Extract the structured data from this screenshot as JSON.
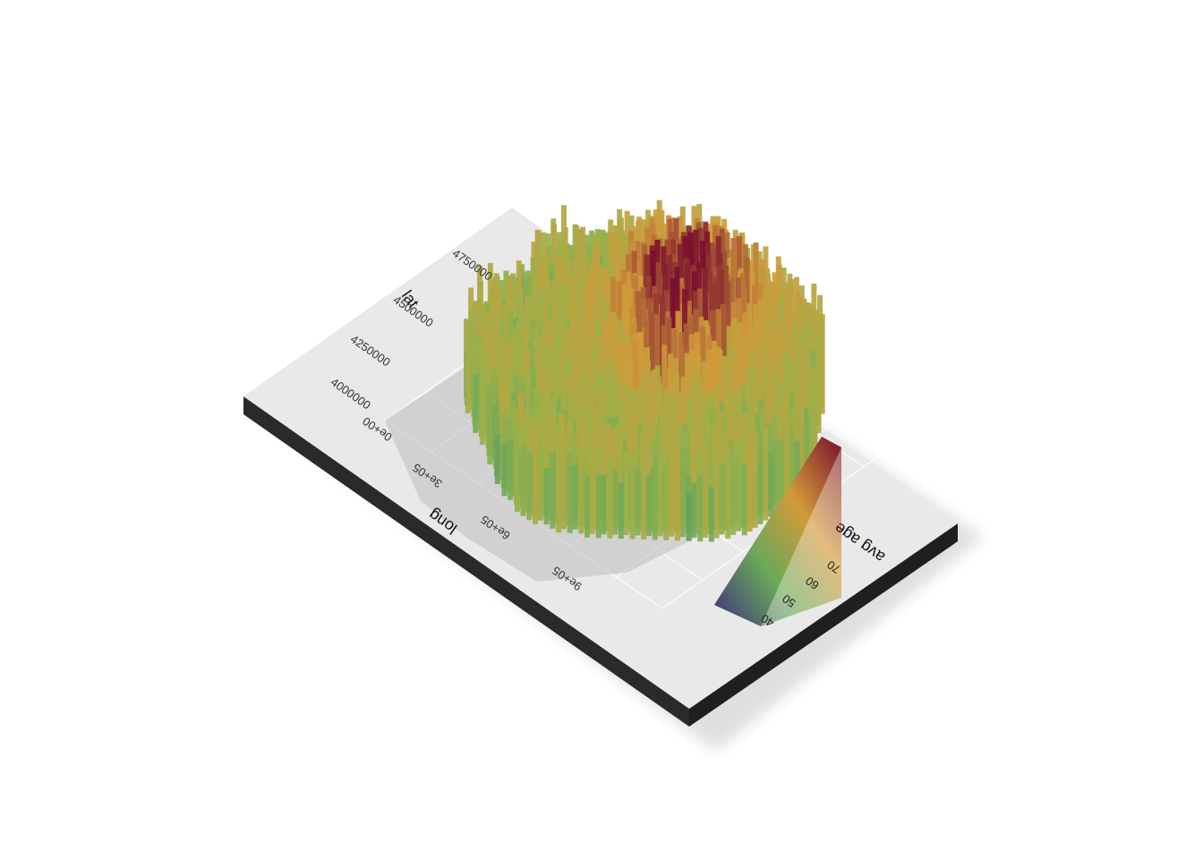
{
  "chart_data": {
    "type": "heatmap",
    "rendering": "3d-extruded-raster",
    "title": "",
    "xlabel": "long",
    "ylabel": "lat",
    "fill_label": "avg age",
    "x_ticks": [
      "0e+00",
      "3e+05",
      "6e+05",
      "9e+05"
    ],
    "y_ticks": [
      "4000000",
      "4250000",
      "4500000",
      "4750000"
    ],
    "xlim": [
      0,
      1100000
    ],
    "ylim": [
      3950000,
      4800000
    ],
    "fill_range": [
      35,
      76
    ],
    "fill_ticks": [
      "40",
      "50",
      "60",
      "70"
    ],
    "colormap": "plasma-like (purple → green → orange → dark red)",
    "grid": true,
    "legend_position": "right",
    "colors": {
      "low": "#3b2f7a",
      "mid_low": "#6aa85a",
      "mid": "#9bb04a",
      "mid_high": "#d29a3a",
      "high": "#7a0f2e",
      "panel": "#e9e9e9",
      "base_edge": "#2a2a2a"
    }
  }
}
